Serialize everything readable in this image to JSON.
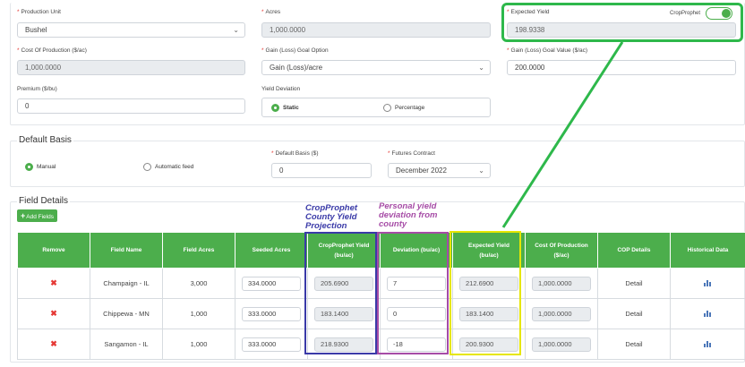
{
  "top_form": {
    "production_unit": {
      "label": "Production Unit",
      "value": "Bushel"
    },
    "acres": {
      "label": "Acres",
      "value": "1,000.0000"
    },
    "expected_yield": {
      "label": "Expected Yield",
      "value": "198.9338",
      "toggle_label": "CropProphet"
    },
    "cost_of_production": {
      "label": "Cost Of Production ($/ac)",
      "value": "1,000.0000"
    },
    "gain_loss_option": {
      "label": "Gain (Loss) Goal Option",
      "value": "Gain (Loss)/acre"
    },
    "gain_loss_value": {
      "label": "Gain (Loss) Goal Value ($/ac)",
      "value": "200.0000"
    },
    "premium": {
      "label": "Premium ($/bu)",
      "value": "0"
    },
    "yield_deviation": {
      "label": "Yield Deviation",
      "options": [
        "Static",
        "Percentage"
      ]
    }
  },
  "default_basis": {
    "title": "Default Basis",
    "options": [
      "Manual",
      "Automatic feed"
    ],
    "basis": {
      "label": "Default Basis ($)",
      "value": "0"
    },
    "futures": {
      "label": "Futures Contract",
      "value": "December 2022"
    }
  },
  "field_details": {
    "title": "Field Details",
    "add_button": "Add Fields",
    "columns": [
      "Remove",
      "Field Name",
      "Field Acres",
      "Seeded Acres",
      "CropProphet Yield",
      "(bu/ac)",
      "Deviation (bu/ac)",
      "Expected Yield",
      "(bu/ac)",
      "Cost Of Production",
      "($/ac)",
      "COP Details",
      "Historical Data"
    ],
    "rows": [
      {
        "name": "Champaign - IL",
        "acres": "3,000",
        "seeded": "334.0000",
        "cp_yield": "205.6900",
        "deviation": "7",
        "expected": "212.6900",
        "cop": "1,000.0000",
        "details": "Detail"
      },
      {
        "name": "Chippewa - MN",
        "acres": "1,000",
        "seeded": "333.0000",
        "cp_yield": "183.1400",
        "deviation": "0",
        "expected": "183.1400",
        "cop": "1,000.0000",
        "details": "Detail"
      },
      {
        "name": "Sangamon - IL",
        "acres": "1,000",
        "seeded": "333.0000",
        "cp_yield": "218.9300",
        "deviation": "-18",
        "expected": "200.9300",
        "cop": "1,000.0000",
        "details": "Detail"
      }
    ]
  },
  "annotations": {
    "cropprophet": "CropProphet County Yield Projection",
    "personal": "Personal yield deviation from county",
    "colors": {
      "green": "#2eb84b",
      "blue": "#3a3aa8",
      "purple": "#a64ca6",
      "yellow": "#e6e600"
    }
  },
  "colors": {
    "accent": "#4cae4c",
    "remove": "#e53935"
  }
}
